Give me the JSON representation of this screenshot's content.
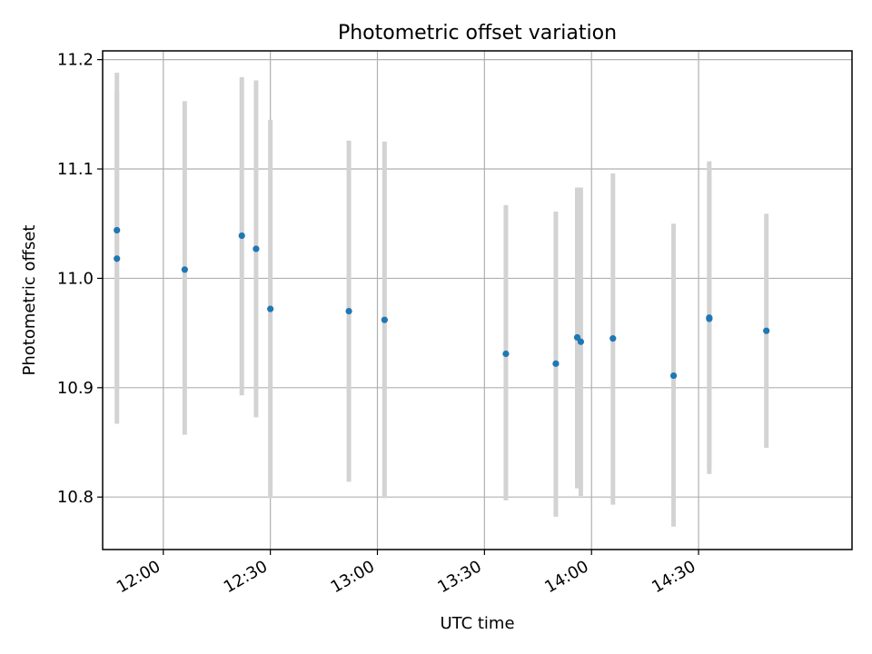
{
  "chart_data": {
    "type": "scatter",
    "title": "Photometric offset variation",
    "xlabel": "UTC time",
    "ylabel": "Photometric offset",
    "x_unit": "UTC time (HH:MM)",
    "xlim": [
      "11:43",
      "15:13"
    ],
    "ylim": [
      10.752,
      11.208
    ],
    "x_ticks": [
      "12:00",
      "12:30",
      "13:00",
      "13:30",
      "14:00",
      "14:30"
    ],
    "y_ticks": [
      "10.8",
      "10.9",
      "11.0",
      "11.1",
      "11.2"
    ],
    "grid": true,
    "legend": "none",
    "colors": {
      "marker": "#1f77b4",
      "errorbar": "#d3d3d3",
      "grid": "#b0b0b0"
    },
    "series": [
      {
        "points": [
          {
            "time": "11:47",
            "y": 11.018,
            "ylow": 10.867,
            "yhigh": 11.17
          },
          {
            "time": "11:47",
            "y": 11.044,
            "ylow": 10.899,
            "yhigh": 11.188
          },
          {
            "time": "12:06",
            "y": 11.008,
            "ylow": 10.857,
            "yhigh": 11.162
          },
          {
            "time": "12:22",
            "y": 11.039,
            "ylow": 10.893,
            "yhigh": 11.184
          },
          {
            "time": "12:26",
            "y": 11.027,
            "ylow": 10.873,
            "yhigh": 11.181
          },
          {
            "time": "12:30",
            "y": 10.972,
            "ylow": 10.799,
            "yhigh": 11.145
          },
          {
            "time": "12:52",
            "y": 10.97,
            "ylow": 10.814,
            "yhigh": 11.126
          },
          {
            "time": "13:02",
            "y": 10.962,
            "ylow": 10.799,
            "yhigh": 11.125
          },
          {
            "time": "13:36",
            "y": 10.931,
            "ylow": 10.797,
            "yhigh": 11.067
          },
          {
            "time": "13:50",
            "y": 10.922,
            "ylow": 10.782,
            "yhigh": 11.061
          },
          {
            "time": "13:56",
            "y": 10.946,
            "ylow": 10.808,
            "yhigh": 11.083
          },
          {
            "time": "13:57",
            "y": 10.942,
            "ylow": 10.801,
            "yhigh": 11.083
          },
          {
            "time": "14:06",
            "y": 10.945,
            "ylow": 10.793,
            "yhigh": 11.096
          },
          {
            "time": "14:23",
            "y": 10.911,
            "ylow": 10.773,
            "yhigh": 11.05
          },
          {
            "time": "14:33",
            "y": 10.964,
            "ylow": 10.821,
            "yhigh": 11.107
          },
          {
            "time": "14:33",
            "y": 10.963,
            "ylow": 10.826,
            "yhigh": 11.1
          },
          {
            "time": "14:49",
            "y": 10.952,
            "ylow": 10.845,
            "yhigh": 11.059
          }
        ]
      }
    ]
  }
}
